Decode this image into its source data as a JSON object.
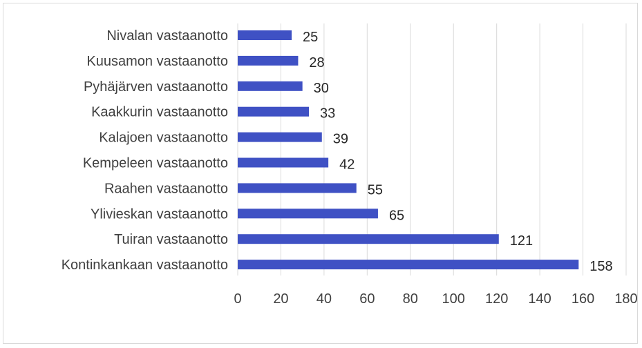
{
  "chart_data": {
    "type": "bar",
    "orientation": "horizontal",
    "categories": [
      "Nivalan vastaanotto",
      "Kuusamon vastaanotto",
      "Pyhäjärven vastaanotto",
      "Kaakkurin vastaanotto",
      "Kalajoen vastaanotto",
      "Kempeleen vastaanotto",
      "Raahen vastaanotto",
      "Ylivieskan vastaanotto",
      "Tuiran vastaanotto",
      "Kontinkankaan vastaanotto"
    ],
    "values": [
      25,
      28,
      30,
      33,
      39,
      42,
      55,
      65,
      121,
      158
    ],
    "value_labels": [
      "25",
      "28",
      "30",
      "33",
      "39",
      "42",
      "55",
      "65",
      "121",
      "158"
    ],
    "ticks": [
      "0",
      "20",
      "40",
      "60",
      "80",
      "100",
      "120",
      "140",
      "160",
      "180"
    ],
    "xlim": [
      0,
      180
    ],
    "grid": true,
    "legend": "none",
    "bar_color": "#3f51c4",
    "grid_color": "#d9d9d9"
  }
}
